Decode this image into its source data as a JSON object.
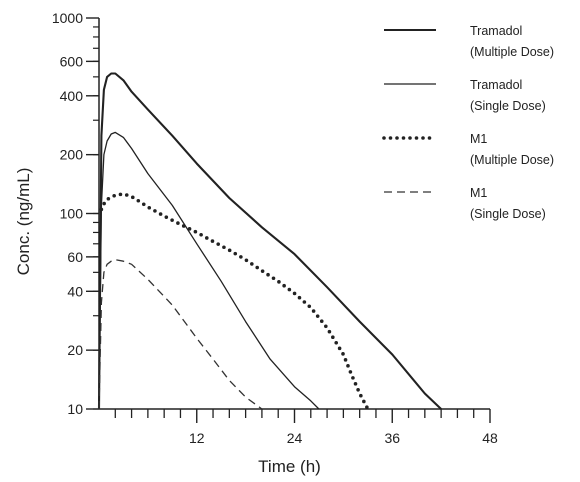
{
  "chart_data": {
    "type": "line",
    "xlabel": "Time (h)",
    "ylabel": "Conc. (ng/mL)",
    "x_scale": "linear",
    "y_scale": "log",
    "xlim": [
      0,
      48
    ],
    "ylim": [
      10,
      1000
    ],
    "x_ticks": [
      12,
      24,
      36,
      48
    ],
    "y_ticks": [
      10,
      20,
      40,
      60,
      100,
      200,
      400,
      600,
      1000
    ],
    "grid": false,
    "legend_position": "top-right",
    "series": [
      {
        "name": "Tramadol (Multiple Dose)",
        "legend_lines": [
          "Tramadol",
          "(Multiple Dose)"
        ],
        "style": "solid-thick",
        "x": [
          0,
          0.3,
          0.6,
          1,
          1.5,
          2,
          3,
          4,
          6,
          9,
          12,
          16,
          20,
          24,
          28,
          32,
          36,
          40,
          42
        ],
        "y": [
          10,
          250,
          430,
          500,
          520,
          520,
          480,
          420,
          340,
          250,
          180,
          120,
          85,
          62,
          42,
          28,
          19,
          12,
          10
        ]
      },
      {
        "name": "Tramadol (Single Dose)",
        "legend_lines": [
          "Tramadol",
          "(Single Dose)"
        ],
        "style": "solid",
        "x": [
          0,
          0.3,
          0.6,
          1,
          1.5,
          2,
          3,
          4,
          6,
          9,
          12,
          15,
          18,
          21,
          24,
          26,
          27
        ],
        "y": [
          10,
          110,
          200,
          235,
          255,
          260,
          245,
          215,
          160,
          110,
          70,
          45,
          28,
          18,
          13,
          11,
          10
        ]
      },
      {
        "name": "M1 (Multiple Dose)",
        "legend_lines": [
          "M1",
          "(Multiple Dose)"
        ],
        "style": "dotted",
        "x": [
          0.3,
          0.6,
          1,
          2,
          3,
          4,
          5,
          6,
          8,
          10,
          12,
          14,
          16,
          18,
          20,
          22,
          24,
          26,
          28,
          30,
          31,
          32,
          33
        ],
        "y": [
          105,
          112,
          118,
          124,
          126,
          122,
          115,
          108,
          97,
          88,
          80,
          72,
          65,
          58,
          51,
          45,
          39,
          33,
          26,
          19,
          15,
          12,
          10
        ]
      },
      {
        "name": "M1 (Single Dose)",
        "legend_lines": [
          "M1",
          "(Single Dose)"
        ],
        "style": "dashed",
        "x": [
          0,
          0.3,
          0.6,
          1,
          1.5,
          2,
          3,
          4,
          6,
          9,
          12,
          14,
          16,
          18,
          20
        ],
        "y": [
          10,
          35,
          50,
          55,
          57,
          58,
          57,
          55,
          46,
          34,
          23,
          18,
          14,
          11.5,
          10
        ]
      }
    ]
  }
}
